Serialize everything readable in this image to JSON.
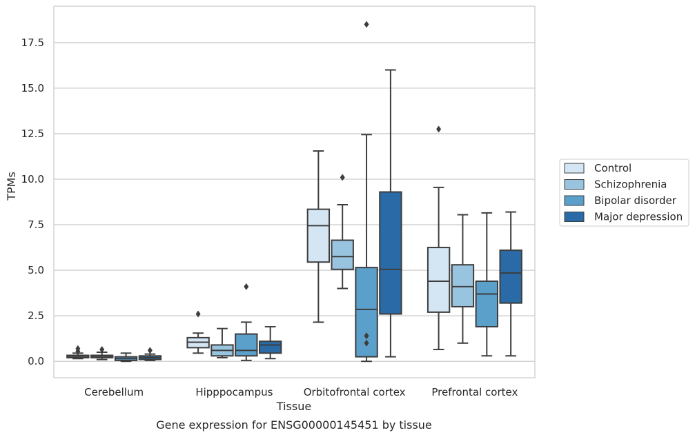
{
  "chart_data": {
    "type": "box",
    "xlabel": "Tissue",
    "ylabel": "TPMs",
    "caption": "Gene expression for ENSG00000145451 by tissue",
    "ylim": [
      -0.9,
      19.5
    ],
    "yticks": [
      0.0,
      2.5,
      5.0,
      7.5,
      10.0,
      12.5,
      15.0,
      17.5
    ],
    "ytick_labels": [
      "0.0",
      "2.5",
      "5.0",
      "7.5",
      "10.0",
      "12.5",
      "15.0",
      "17.5"
    ],
    "grid": "horizontal",
    "legend_position": "right",
    "categories": [
      "Cerebellum",
      "Hipppocampus",
      "Orbitofrontal cortex",
      "Prefrontal cortex"
    ],
    "series": [
      {
        "name": "Control",
        "color": "#d4e5f4",
        "boxes": [
          {
            "whislo": 0.15,
            "q1": 0.2,
            "med": 0.28,
            "q3": 0.33,
            "whishi": 0.45,
            "fliers": [
              0.55,
              0.7
            ]
          },
          {
            "whislo": 0.45,
            "q1": 0.75,
            "med": 1.05,
            "q3": 1.3,
            "whishi": 1.55,
            "fliers": [
              2.6
            ]
          },
          {
            "whislo": 2.15,
            "q1": 5.45,
            "med": 7.45,
            "q3": 8.35,
            "whishi": 11.55,
            "fliers": []
          },
          {
            "whislo": 0.65,
            "q1": 2.7,
            "med": 4.4,
            "q3": 6.25,
            "whishi": 9.55,
            "fliers": [
              12.75
            ]
          }
        ]
      },
      {
        "name": "Schizophrenia",
        "color": "#99c4df",
        "boxes": [
          {
            "whislo": 0.1,
            "q1": 0.2,
            "med": 0.28,
            "q3": 0.33,
            "whishi": 0.5,
            "fliers": [
              0.65
            ]
          },
          {
            "whislo": 0.2,
            "q1": 0.3,
            "med": 0.6,
            "q3": 0.9,
            "whishi": 1.8,
            "fliers": []
          },
          {
            "whislo": 4.0,
            "q1": 5.05,
            "med": 5.75,
            "q3": 6.65,
            "whishi": 8.6,
            "fliers": [
              10.1
            ]
          },
          {
            "whislo": 1.0,
            "q1": 3.0,
            "med": 4.1,
            "q3": 5.3,
            "whishi": 8.05,
            "fliers": []
          }
        ]
      },
      {
        "name": "Bipolar disorder",
        "color": "#5b9fcb",
        "boxes": [
          {
            "whislo": 0.0,
            "q1": 0.05,
            "med": 0.15,
            "q3": 0.25,
            "whishi": 0.45,
            "fliers": []
          },
          {
            "whislo": 0.05,
            "q1": 0.3,
            "med": 0.6,
            "q3": 1.5,
            "whishi": 2.15,
            "fliers": [
              4.1
            ]
          },
          {
            "whislo": 0.0,
            "q1": 0.25,
            "med": 2.85,
            "q3": 5.15,
            "whishi": 12.45,
            "fliers": [
              1.0,
              1.4,
              18.5
            ]
          },
          {
            "whislo": 0.3,
            "q1": 1.9,
            "med": 3.7,
            "q3": 4.4,
            "whishi": 8.15,
            "fliers": []
          }
        ]
      },
      {
        "name": "Major depression",
        "color": "#2a6ba7",
        "boxes": [
          {
            "whislo": 0.05,
            "q1": 0.1,
            "med": 0.2,
            "q3": 0.3,
            "whishi": 0.4,
            "fliers": [
              0.6
            ]
          },
          {
            "whislo": 0.15,
            "q1": 0.45,
            "med": 0.9,
            "q3": 1.1,
            "whishi": 1.9,
            "fliers": []
          },
          {
            "whislo": 0.25,
            "q1": 2.6,
            "med": 5.05,
            "q3": 9.3,
            "whishi": 16.0,
            "fliers": []
          },
          {
            "whislo": 0.3,
            "q1": 3.2,
            "med": 4.85,
            "q3": 6.1,
            "whishi": 8.2,
            "fliers": []
          }
        ]
      }
    ]
  }
}
